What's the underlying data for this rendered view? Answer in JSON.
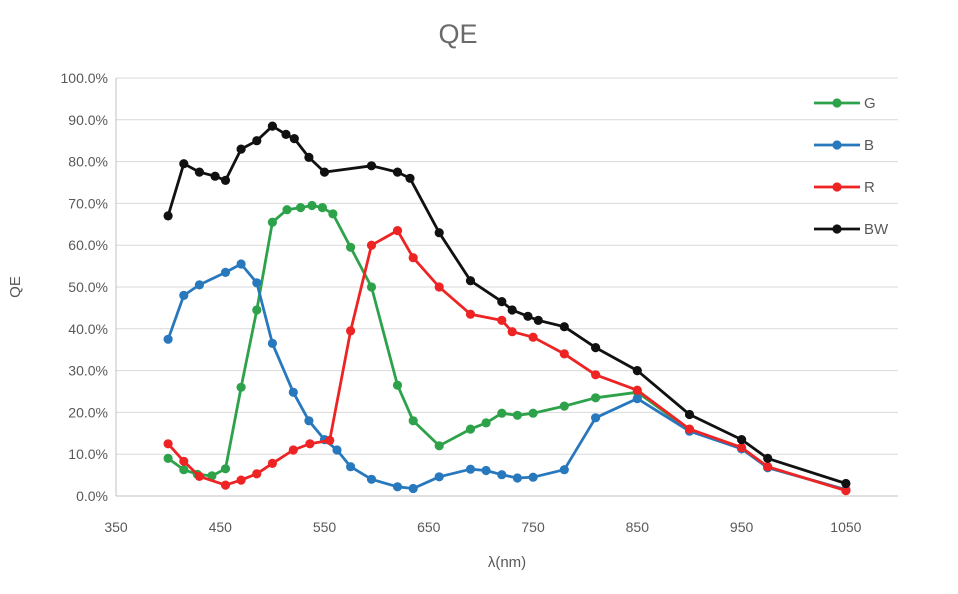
{
  "chart_data": {
    "type": "line",
    "title": "QE",
    "xlabel": "λ(nm)",
    "ylabel": "QE",
    "grid": {
      "horizontal": true,
      "vertical": false
    },
    "legend_position": "right-inside-top",
    "marker": "circle",
    "x_axis": {
      "min": 350,
      "max": 1100,
      "ticks": [
        350,
        450,
        550,
        650,
        750,
        850,
        950,
        1050
      ],
      "tick_labels": [
        "350",
        "450",
        "550",
        "650",
        "750",
        "850",
        "950",
        "1050"
      ]
    },
    "y_axis": {
      "min": 0,
      "max": 100,
      "tick_step": 10,
      "labels": [
        "0.0%",
        "10.0%",
        "20.0%",
        "30.0%",
        "40.0%",
        "50.0%",
        "60.0%",
        "70.0%",
        "80.0%",
        "90.0%",
        "100.0%"
      ]
    },
    "colors": {
      "grid": "#d9d9d9",
      "axis": "#c0c0c0",
      "text": "#595959"
    },
    "series": [
      {
        "name": "G",
        "color": "#2da24a",
        "data": [
          [
            400,
            9
          ],
          [
            415,
            6.3
          ],
          [
            428,
            5.2
          ],
          [
            442,
            4.8
          ],
          [
            455,
            6.5
          ],
          [
            470,
            26
          ],
          [
            485,
            44.5
          ],
          [
            500,
            65.5
          ],
          [
            514,
            68.5
          ],
          [
            527,
            69
          ],
          [
            538,
            69.5
          ],
          [
            548,
            69
          ],
          [
            558,
            67.5
          ],
          [
            575,
            59.5
          ],
          [
            595,
            50
          ],
          [
            620,
            26.5
          ],
          [
            635,
            18
          ],
          [
            660,
            12
          ],
          [
            690,
            16
          ],
          [
            705,
            17.5
          ],
          [
            720,
            19.8
          ],
          [
            735,
            19.3
          ],
          [
            750,
            19.8
          ],
          [
            780,
            21.5
          ],
          [
            810,
            23.5
          ],
          [
            850,
            24.8
          ],
          [
            900,
            15.8
          ],
          [
            950,
            11.3
          ],
          [
            975,
            6.8
          ],
          [
            1050,
            1.5
          ]
        ]
      },
      {
        "name": "B",
        "color": "#2878be",
        "data": [
          [
            400,
            37.5
          ],
          [
            415,
            48
          ],
          [
            430,
            50.5
          ],
          [
            455,
            53.5
          ],
          [
            470,
            55.5
          ],
          [
            485,
            51
          ],
          [
            500,
            36.5
          ],
          [
            520,
            24.8
          ],
          [
            535,
            18
          ],
          [
            550,
            13.5
          ],
          [
            562,
            11
          ],
          [
            575,
            7
          ],
          [
            595,
            4
          ],
          [
            620,
            2.2
          ],
          [
            635,
            1.8
          ],
          [
            660,
            4.6
          ],
          [
            690,
            6.4
          ],
          [
            705,
            6.1
          ],
          [
            720,
            5.1
          ],
          [
            735,
            4.3
          ],
          [
            750,
            4.5
          ],
          [
            780,
            6.3
          ],
          [
            810,
            18.7
          ],
          [
            850,
            23.3
          ],
          [
            900,
            15.5
          ],
          [
            950,
            11.3
          ],
          [
            975,
            6.8
          ],
          [
            1050,
            1.5
          ]
        ]
      },
      {
        "name": "R",
        "color": "#ee2424",
        "data": [
          [
            400,
            12.5
          ],
          [
            415,
            8.3
          ],
          [
            430,
            4.7
          ],
          [
            455,
            2.6
          ],
          [
            470,
            3.8
          ],
          [
            485,
            5.3
          ],
          [
            500,
            7.8
          ],
          [
            520,
            11
          ],
          [
            536,
            12.5
          ],
          [
            555,
            13.3
          ],
          [
            575,
            39.5
          ],
          [
            595,
            60
          ],
          [
            620,
            63.5
          ],
          [
            635,
            57
          ],
          [
            660,
            50
          ],
          [
            690,
            43.5
          ],
          [
            720,
            42
          ],
          [
            730,
            39.3
          ],
          [
            750,
            38
          ],
          [
            780,
            34
          ],
          [
            810,
            29
          ],
          [
            850,
            25.3
          ],
          [
            900,
            16
          ],
          [
            950,
            11.6
          ],
          [
            975,
            7
          ],
          [
            1050,
            1.3
          ]
        ]
      },
      {
        "name": "BW",
        "color": "#111111",
        "data": [
          [
            400,
            67
          ],
          [
            415,
            79.5
          ],
          [
            430,
            77.5
          ],
          [
            445,
            76.5
          ],
          [
            455,
            75.5
          ],
          [
            470,
            83
          ],
          [
            485,
            85
          ],
          [
            500,
            88.5
          ],
          [
            513,
            86.5
          ],
          [
            521,
            85.5
          ],
          [
            535,
            81
          ],
          [
            550,
            77.5
          ],
          [
            595,
            79
          ],
          [
            620,
            77.5
          ],
          [
            632,
            76
          ],
          [
            660,
            63
          ],
          [
            690,
            51.5
          ],
          [
            720,
            46.5
          ],
          [
            730,
            44.5
          ],
          [
            745,
            43
          ],
          [
            755,
            42
          ],
          [
            780,
            40.5
          ],
          [
            810,
            35.5
          ],
          [
            850,
            30
          ],
          [
            900,
            19.5
          ],
          [
            950,
            13.5
          ],
          [
            975,
            9
          ],
          [
            1050,
            3
          ]
        ]
      }
    ],
    "legend_items": [
      "G",
      "B",
      "R",
      "BW"
    ]
  }
}
